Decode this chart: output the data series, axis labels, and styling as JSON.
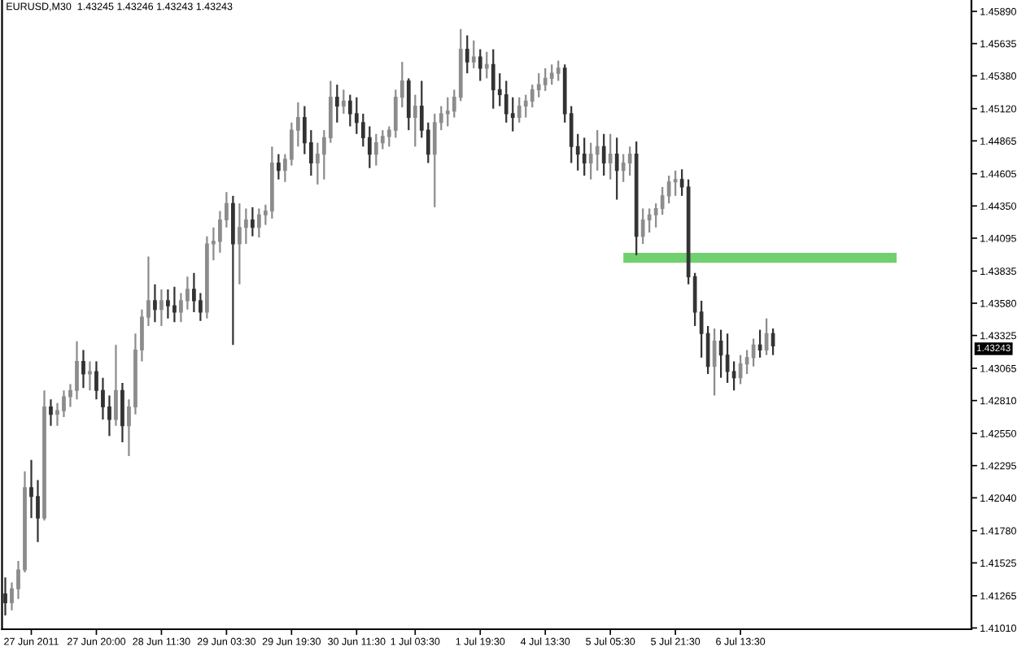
{
  "chart_data": {
    "type": "candlestick",
    "title": "EURUSD,M30  1.43245 1.43246 1.43243 1.43243",
    "categories": [
      null,
      null,
      null,
      null,
      "27 Jun 2011",
      null,
      null,
      null,
      null,
      null,
      null,
      null,
      null,
      null,
      "27 Jun 20:00",
      null,
      null,
      null,
      null,
      null,
      null,
      null,
      null,
      null,
      "28 Jun 11:30",
      null,
      null,
      null,
      null,
      null,
      null,
      null,
      null,
      null,
      "29 Jun 03:30",
      null,
      null,
      null,
      null,
      null,
      null,
      null,
      null,
      null,
      "29 Jun 19:30",
      null,
      null,
      null,
      null,
      null,
      null,
      null,
      null,
      null,
      "30 Jun 11:30",
      null,
      null,
      null,
      null,
      null,
      null,
      null,
      null,
      "1 Jul 03:30",
      null,
      null,
      null,
      null,
      null,
      null,
      null,
      null,
      null,
      "1 Jul 19:30",
      null,
      null,
      null,
      null,
      null,
      null,
      null,
      null,
      null,
      "4 Jul 13:30",
      null,
      null,
      null,
      null,
      null,
      null,
      null,
      null,
      null,
      "5 Jul 05:30",
      null,
      null,
      null,
      null,
      null,
      null,
      null,
      null,
      null,
      "5 Jul 21:30",
      null,
      null,
      null,
      null,
      null,
      null,
      null,
      null,
      null,
      "6 Jul 13:30",
      null,
      null,
      null,
      null,
      null,
      null,
      null,
      null,
      null,
      null,
      null,
      null,
      null,
      null,
      null,
      null,
      null,
      null,
      null,
      null,
      null,
      null,
      null,
      null,
      null,
      null,
      null,
      null,
      null,
      null,
      null,
      null,
      null,
      null,
      null
    ],
    "ohlc": [
      [
        1.4128,
        1.4141,
        1.4111,
        1.4121
      ],
      [
        1.4121,
        1.4137,
        1.4115,
        1.4132
      ],
      [
        1.4132,
        1.4154,
        1.4124,
        1.4147
      ],
      [
        1.4147,
        1.4225,
        1.4145,
        1.4212
      ],
      [
        1.4212,
        1.4234,
        1.4188,
        1.4205
      ],
      [
        1.4205,
        1.4218,
        1.4169,
        1.4188
      ],
      [
        1.4188,
        1.4289,
        1.4186,
        1.4276
      ],
      [
        1.4276,
        1.4282,
        1.4261,
        1.427
      ],
      [
        1.427,
        1.4279,
        1.4261,
        1.4273
      ],
      [
        1.4273,
        1.4289,
        1.4268,
        1.4284
      ],
      [
        1.4284,
        1.4294,
        1.4276,
        1.4289
      ],
      [
        1.4289,
        1.4328,
        1.4282,
        1.4312
      ],
      [
        1.4312,
        1.4321,
        1.4291,
        1.4302
      ],
      [
        1.4302,
        1.4312,
        1.4289,
        1.4304
      ],
      [
        1.4304,
        1.4312,
        1.4282,
        1.4289
      ],
      [
        1.4289,
        1.4299,
        1.4266,
        1.4276
      ],
      [
        1.4276,
        1.4285,
        1.4253,
        1.4266
      ],
      [
        1.4266,
        1.4325,
        1.4261,
        1.4289
      ],
      [
        1.4289,
        1.4295,
        1.4248,
        1.4261
      ],
      [
        1.4261,
        1.4282,
        1.4237,
        1.4276
      ],
      [
        1.4276,
        1.4334,
        1.427,
        1.4321
      ],
      [
        1.4321,
        1.4353,
        1.4312,
        1.4347
      ],
      [
        1.4347,
        1.4395,
        1.434,
        1.436
      ],
      [
        1.436,
        1.4373,
        1.4343,
        1.4353
      ],
      [
        1.4353,
        1.4369,
        1.434,
        1.436
      ],
      [
        1.436,
        1.4369,
        1.4346,
        1.4356
      ],
      [
        1.4356,
        1.4371,
        1.4343,
        1.4351
      ],
      [
        1.4351,
        1.4366,
        1.4343,
        1.436
      ],
      [
        1.436,
        1.4379,
        1.4353,
        1.4369
      ],
      [
        1.4369,
        1.4382,
        1.4351,
        1.436
      ],
      [
        1.436,
        1.4366,
        1.4344,
        1.4351
      ],
      [
        1.4351,
        1.4411,
        1.4346,
        1.4405
      ],
      [
        1.4405,
        1.4418,
        1.4392,
        1.4407
      ],
      [
        1.4407,
        1.4431,
        1.4398,
        1.4424
      ],
      [
        1.4424,
        1.4446,
        1.4418,
        1.4437
      ],
      [
        1.4437,
        1.4443,
        1.4325,
        1.4405
      ],
      [
        1.4405,
        1.4437,
        1.4373,
        1.4418
      ],
      [
        1.4418,
        1.4433,
        1.4405,
        1.4424
      ],
      [
        1.4424,
        1.4434,
        1.4411,
        1.4418
      ],
      [
        1.4418,
        1.4433,
        1.441,
        1.4428
      ],
      [
        1.4428,
        1.4436,
        1.442,
        1.4431
      ],
      [
        1.4431,
        1.4482,
        1.4425,
        1.4469
      ],
      [
        1.4469,
        1.4476,
        1.4456,
        1.4463
      ],
      [
        1.4463,
        1.4476,
        1.4454,
        1.4472
      ],
      [
        1.4472,
        1.4501,
        1.4467,
        1.4495
      ],
      [
        1.4495,
        1.4517,
        1.4482,
        1.4505
      ],
      [
        1.4505,
        1.4514,
        1.4476,
        1.4485
      ],
      [
        1.4485,
        1.4495,
        1.4459,
        1.4469
      ],
      [
        1.4469,
        1.4485,
        1.4452,
        1.4476
      ],
      [
        1.4476,
        1.4495,
        1.4456,
        1.4489
      ],
      [
        1.4489,
        1.4534,
        1.4485,
        1.4521
      ],
      [
        1.4521,
        1.4531,
        1.4501,
        1.4514
      ],
      [
        1.4514,
        1.4527,
        1.4508,
        1.4518
      ],
      [
        1.4518,
        1.4523,
        1.4498,
        1.4508
      ],
      [
        1.4508,
        1.4521,
        1.4492,
        1.4501
      ],
      [
        1.4501,
        1.4508,
        1.4482,
        1.4489
      ],
      [
        1.4489,
        1.4498,
        1.4465,
        1.4476
      ],
      [
        1.4476,
        1.4492,
        1.4467,
        1.4485
      ],
      [
        1.4485,
        1.4495,
        1.448,
        1.449
      ],
      [
        1.449,
        1.4498,
        1.4482,
        1.4495
      ],
      [
        1.4495,
        1.4527,
        1.4489,
        1.4521
      ],
      [
        1.4521,
        1.4549,
        1.4513,
        1.4534
      ],
      [
        1.4534,
        1.4536,
        1.4495,
        1.4505
      ],
      [
        1.4505,
        1.4523,
        1.4482,
        1.4514
      ],
      [
        1.4514,
        1.4534,
        1.4489,
        1.4495
      ],
      [
        1.4495,
        1.4501,
        1.4469,
        1.4476
      ],
      [
        1.4476,
        1.4508,
        1.4434,
        1.4501
      ],
      [
        1.4501,
        1.4514,
        1.4495,
        1.4508
      ],
      [
        1.4508,
        1.4521,
        1.4498,
        1.451
      ],
      [
        1.451,
        1.4527,
        1.4505,
        1.4521
      ],
      [
        1.4521,
        1.4575,
        1.4518,
        1.4559
      ],
      [
        1.4559,
        1.457,
        1.454,
        1.4549
      ],
      [
        1.4549,
        1.4566,
        1.4544,
        1.4553
      ],
      [
        1.4553,
        1.4559,
        1.4534,
        1.4544
      ],
      [
        1.4544,
        1.4557,
        1.4536,
        1.4547
      ],
      [
        1.4547,
        1.4559,
        1.4512,
        1.4527
      ],
      [
        1.4527,
        1.454,
        1.4514,
        1.4523
      ],
      [
        1.4523,
        1.4534,
        1.4501,
        1.4508
      ],
      [
        1.4508,
        1.4521,
        1.4494,
        1.4505
      ],
      [
        1.4505,
        1.4521,
        1.4501,
        1.4514
      ],
      [
        1.4514,
        1.4523,
        1.4505,
        1.4518
      ],
      [
        1.4518,
        1.4531,
        1.4513,
        1.4527
      ],
      [
        1.4527,
        1.454,
        1.4521,
        1.4531
      ],
      [
        1.4531,
        1.4544,
        1.4526,
        1.4536
      ],
      [
        1.4536,
        1.4547,
        1.4531,
        1.454
      ],
      [
        1.454,
        1.455,
        1.4534,
        1.4544
      ],
      [
        1.4544,
        1.4547,
        1.4501,
        1.4508
      ],
      [
        1.4508,
        1.4514,
        1.4469,
        1.4482
      ],
      [
        1.4482,
        1.4492,
        1.4463,
        1.4476
      ],
      [
        1.4476,
        1.4489,
        1.4459,
        1.4469
      ],
      [
        1.4469,
        1.4485,
        1.4456,
        1.4476
      ],
      [
        1.4476,
        1.4495,
        1.4463,
        1.4482
      ],
      [
        1.4482,
        1.4492,
        1.4459,
        1.4469
      ],
      [
        1.4469,
        1.4492,
        1.4456,
        1.4476
      ],
      [
        1.4476,
        1.4489,
        1.444,
        1.4463
      ],
      [
        1.4463,
        1.4476,
        1.4454,
        1.4469
      ],
      [
        1.4469,
        1.4482,
        1.4459,
        1.4476
      ],
      [
        1.4476,
        1.4486,
        1.4396,
        1.4411
      ],
      [
        1.4411,
        1.4433,
        1.4405,
        1.4424
      ],
      [
        1.4424,
        1.4433,
        1.4414,
        1.4428
      ],
      [
        1.4428,
        1.4437,
        1.4418,
        1.4433
      ],
      [
        1.4433,
        1.445,
        1.4428,
        1.4443
      ],
      [
        1.4443,
        1.4459,
        1.4437,
        1.4454
      ],
      [
        1.4454,
        1.4463,
        1.4443,
        1.4456
      ],
      [
        1.4456,
        1.4464,
        1.4443,
        1.445
      ],
      [
        1.445,
        1.4456,
        1.4373,
        1.4379
      ],
      [
        1.4379,
        1.4382,
        1.434,
        1.4351
      ],
      [
        1.4351,
        1.436,
        1.4315,
        1.4334
      ],
      [
        1.4334,
        1.434,
        1.4302,
        1.4308
      ],
      [
        1.4308,
        1.4338,
        1.4285,
        1.4328
      ],
      [
        1.4328,
        1.4337,
        1.4299,
        1.4317
      ],
      [
        1.4317,
        1.4334,
        1.4295,
        1.4304
      ],
      [
        1.4304,
        1.4312,
        1.4289,
        1.4299
      ],
      [
        1.4299,
        1.4317,
        1.4294,
        1.431
      ],
      [
        1.431,
        1.4321,
        1.4302,
        1.4315
      ],
      [
        1.4315,
        1.433,
        1.4308,
        1.4325
      ],
      [
        1.4325,
        1.4337,
        1.4315,
        1.4321
      ],
      [
        1.4321,
        1.4346,
        1.4317,
        1.4334
      ],
      [
        1.4334,
        1.4338,
        1.4317,
        1.43243
      ],
      null,
      null,
      null,
      null,
      null,
      null,
      null,
      null,
      null,
      null,
      null,
      null,
      null,
      null,
      null,
      null,
      null,
      null,
      null,
      null,
      null,
      null,
      null,
      null,
      null,
      null,
      null,
      null,
      null,
      null
    ],
    "colors": [
      "#333333",
      "#8c8c8c",
      "#8c8c8c",
      "#8c8c8c",
      "#333333",
      "#333333",
      "#8c8c8c",
      "#333333",
      "#8c8c8c",
      "#8c8c8c",
      "#8c8c8c",
      "#8c8c8c",
      "#333333",
      "#8c8c8c",
      "#333333",
      "#333333",
      "#333333",
      "#8c8c8c",
      "#333333",
      "#8c8c8c",
      "#8c8c8c",
      "#8c8c8c",
      "#8c8c8c",
      "#333333",
      "#8c8c8c",
      "#333333",
      "#333333",
      "#8c8c8c",
      "#8c8c8c",
      "#333333",
      "#333333",
      "#8c8c8c",
      "#8c8c8c",
      "#8c8c8c",
      "#8c8c8c",
      "#333333",
      "#8c8c8c",
      "#8c8c8c",
      "#333333",
      "#8c8c8c",
      "#8c8c8c",
      "#8c8c8c",
      "#333333",
      "#8c8c8c",
      "#8c8c8c",
      "#8c8c8c",
      "#333333",
      "#333333",
      "#8c8c8c",
      "#8c8c8c",
      "#8c8c8c",
      "#333333",
      "#8c8c8c",
      "#333333",
      "#333333",
      "#333333",
      "#333333",
      "#8c8c8c",
      "#8c8c8c",
      "#8c8c8c",
      "#8c8c8c",
      "#8c8c8c",
      "#333333",
      "#8c8c8c",
      "#333333",
      "#333333",
      "#8c8c8c",
      "#8c8c8c",
      "#8c8c8c",
      "#8c8c8c",
      "#8c8c8c",
      "#333333",
      "#8c8c8c",
      "#333333",
      "#8c8c8c",
      "#333333",
      "#333333",
      "#333333",
      "#333333",
      "#8c8c8c",
      "#8c8c8c",
      "#8c8c8c",
      "#8c8c8c",
      "#8c8c8c",
      "#8c8c8c",
      "#8c8c8c",
      "#333333",
      "#333333",
      "#333333",
      "#333333",
      "#8c8c8c",
      "#8c8c8c",
      "#333333",
      "#8c8c8c",
      "#333333",
      "#8c8c8c",
      "#8c8c8c",
      "#333333",
      "#8c8c8c",
      "#8c8c8c",
      "#8c8c8c",
      "#8c8c8c",
      "#8c8c8c",
      "#8c8c8c",
      "#333333",
      "#333333",
      "#333333",
      "#333333",
      "#333333",
      "#8c8c8c",
      "#333333",
      "#333333",
      "#333333",
      "#8c8c8c",
      "#8c8c8c",
      "#8c8c8c",
      "#333333",
      "#8c8c8c",
      "#333333",
      null,
      null,
      null,
      null,
      null,
      null,
      null,
      null,
      null,
      null,
      null,
      null,
      null,
      null,
      null,
      null,
      null,
      null,
      null,
      null,
      null,
      null,
      null,
      null,
      null,
      null,
      null,
      null,
      null,
      null
    ],
    "series": [
      {
        "type": "line",
        "color": "#70d070",
        "values": [
          null,
          null,
          null,
          null,
          null,
          null,
          null,
          null,
          null,
          null,
          null,
          null,
          null,
          null,
          null,
          null,
          null,
          null,
          null,
          null,
          null,
          null,
          null,
          null,
          null,
          null,
          null,
          null,
          null,
          null,
          null,
          null,
          null,
          null,
          null,
          null,
          null,
          null,
          null,
          null,
          null,
          null,
          null,
          null,
          null,
          null,
          null,
          null,
          null,
          null,
          null,
          null,
          null,
          null,
          null,
          null,
          null,
          null,
          null,
          null,
          null,
          null,
          null,
          null,
          null,
          null,
          null,
          null,
          null,
          null,
          null,
          null,
          null,
          null,
          null,
          null,
          null,
          null,
          null,
          null,
          null,
          null,
          null,
          null,
          null,
          null,
          null,
          null,
          null,
          null,
          null,
          null,
          null,
          null,
          null,
          1.4394,
          1.4394,
          1.4394,
          1.4394,
          1.4394,
          1.4394,
          1.4394,
          1.4394,
          1.4394,
          1.4394,
          1.4394,
          1.4394,
          1.4394,
          1.4394,
          1.4394,
          1.4394,
          1.4394,
          1.4394,
          1.4394,
          1.4394,
          1.4394,
          1.4394,
          1.4394,
          1.4394,
          1.4394,
          1.4394,
          1.4394,
          1.4394,
          1.4394,
          1.4394,
          1.4394,
          1.4394,
          1.4394,
          1.4394,
          1.4394,
          1.4394,
          1.4394,
          1.4394,
          1.4394,
          1.4394,
          1.4394,
          1.4394,
          1.4394,
          null,
          null,
          null,
          null,
          null,
          null,
          null,
          null,
          null,
          null,
          null
        ]
      }
    ],
    "annotations": [
      "1.43243"
    ],
    "ylim": [
      1.41,
      1.4598
    ],
    "yticks": [
      {
        "value": 1.4101,
        "label": "1.41010"
      },
      1.41265,
      1.41525,
      {
        "value": 1.4178,
        "label": "1.41780"
      },
      {
        "value": 1.4204,
        "label": "1.42040"
      },
      1.42295,
      {
        "value": 1.4255,
        "label": "1.42550"
      },
      {
        "value": 1.4281,
        "label": "1.42810"
      },
      1.43065,
      1.43325,
      {
        "value": 1.4358,
        "label": "1.43580"
      },
      1.43835,
      1.44095,
      {
        "value": 1.4435,
        "label": "1.44350"
      },
      1.44605,
      1.44865,
      {
        "value": 1.4512,
        "label": "1.45120"
      },
      {
        "value": 1.4538,
        "label": "1.45380"
      },
      1.45635,
      {
        "value": 1.4589,
        "label": "1.45890"
      }
    ]
  }
}
